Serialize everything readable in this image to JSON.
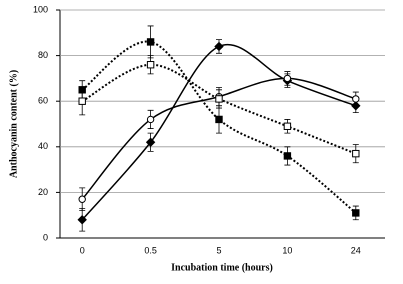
{
  "chart_data": {
    "type": "line",
    "x_label": "Incubation time (hours)",
    "y_label": "Anthocyanin content (%)",
    "categories": [
      "0",
      "0.5",
      "5",
      "10",
      "24"
    ],
    "ylim": [
      0,
      100
    ],
    "yticks": [
      0,
      20,
      40,
      60,
      80,
      100
    ],
    "grid": true,
    "series": [
      {
        "color": "#000000",
        "line_style": "solid",
        "marker": "diamond",
        "marker_fill": "#000000",
        "values": [
          8,
          42,
          84,
          69,
          58
        ],
        "errors": [
          5,
          4,
          3,
          3,
          3
        ]
      },
      {
        "color": "#000000",
        "line_style": "solid",
        "marker": "circle",
        "marker_fill": "#ffffff",
        "values": [
          17,
          52,
          62,
          70,
          61
        ],
        "errors": [
          5,
          4,
          4,
          3,
          3
        ]
      },
      {
        "color": "#000000",
        "line_style": "dotted",
        "marker": "square",
        "marker_fill": "#000000",
        "values": [
          65,
          86,
          52,
          36,
          11
        ],
        "errors": [
          4,
          7,
          6,
          4,
          3
        ]
      },
      {
        "color": "#000000",
        "line_style": "dotted",
        "marker": "square",
        "marker_fill": "#ffffff",
        "values": [
          60,
          76,
          61,
          49,
          37
        ],
        "errors": [
          6,
          4,
          4,
          3,
          4
        ]
      }
    ]
  }
}
